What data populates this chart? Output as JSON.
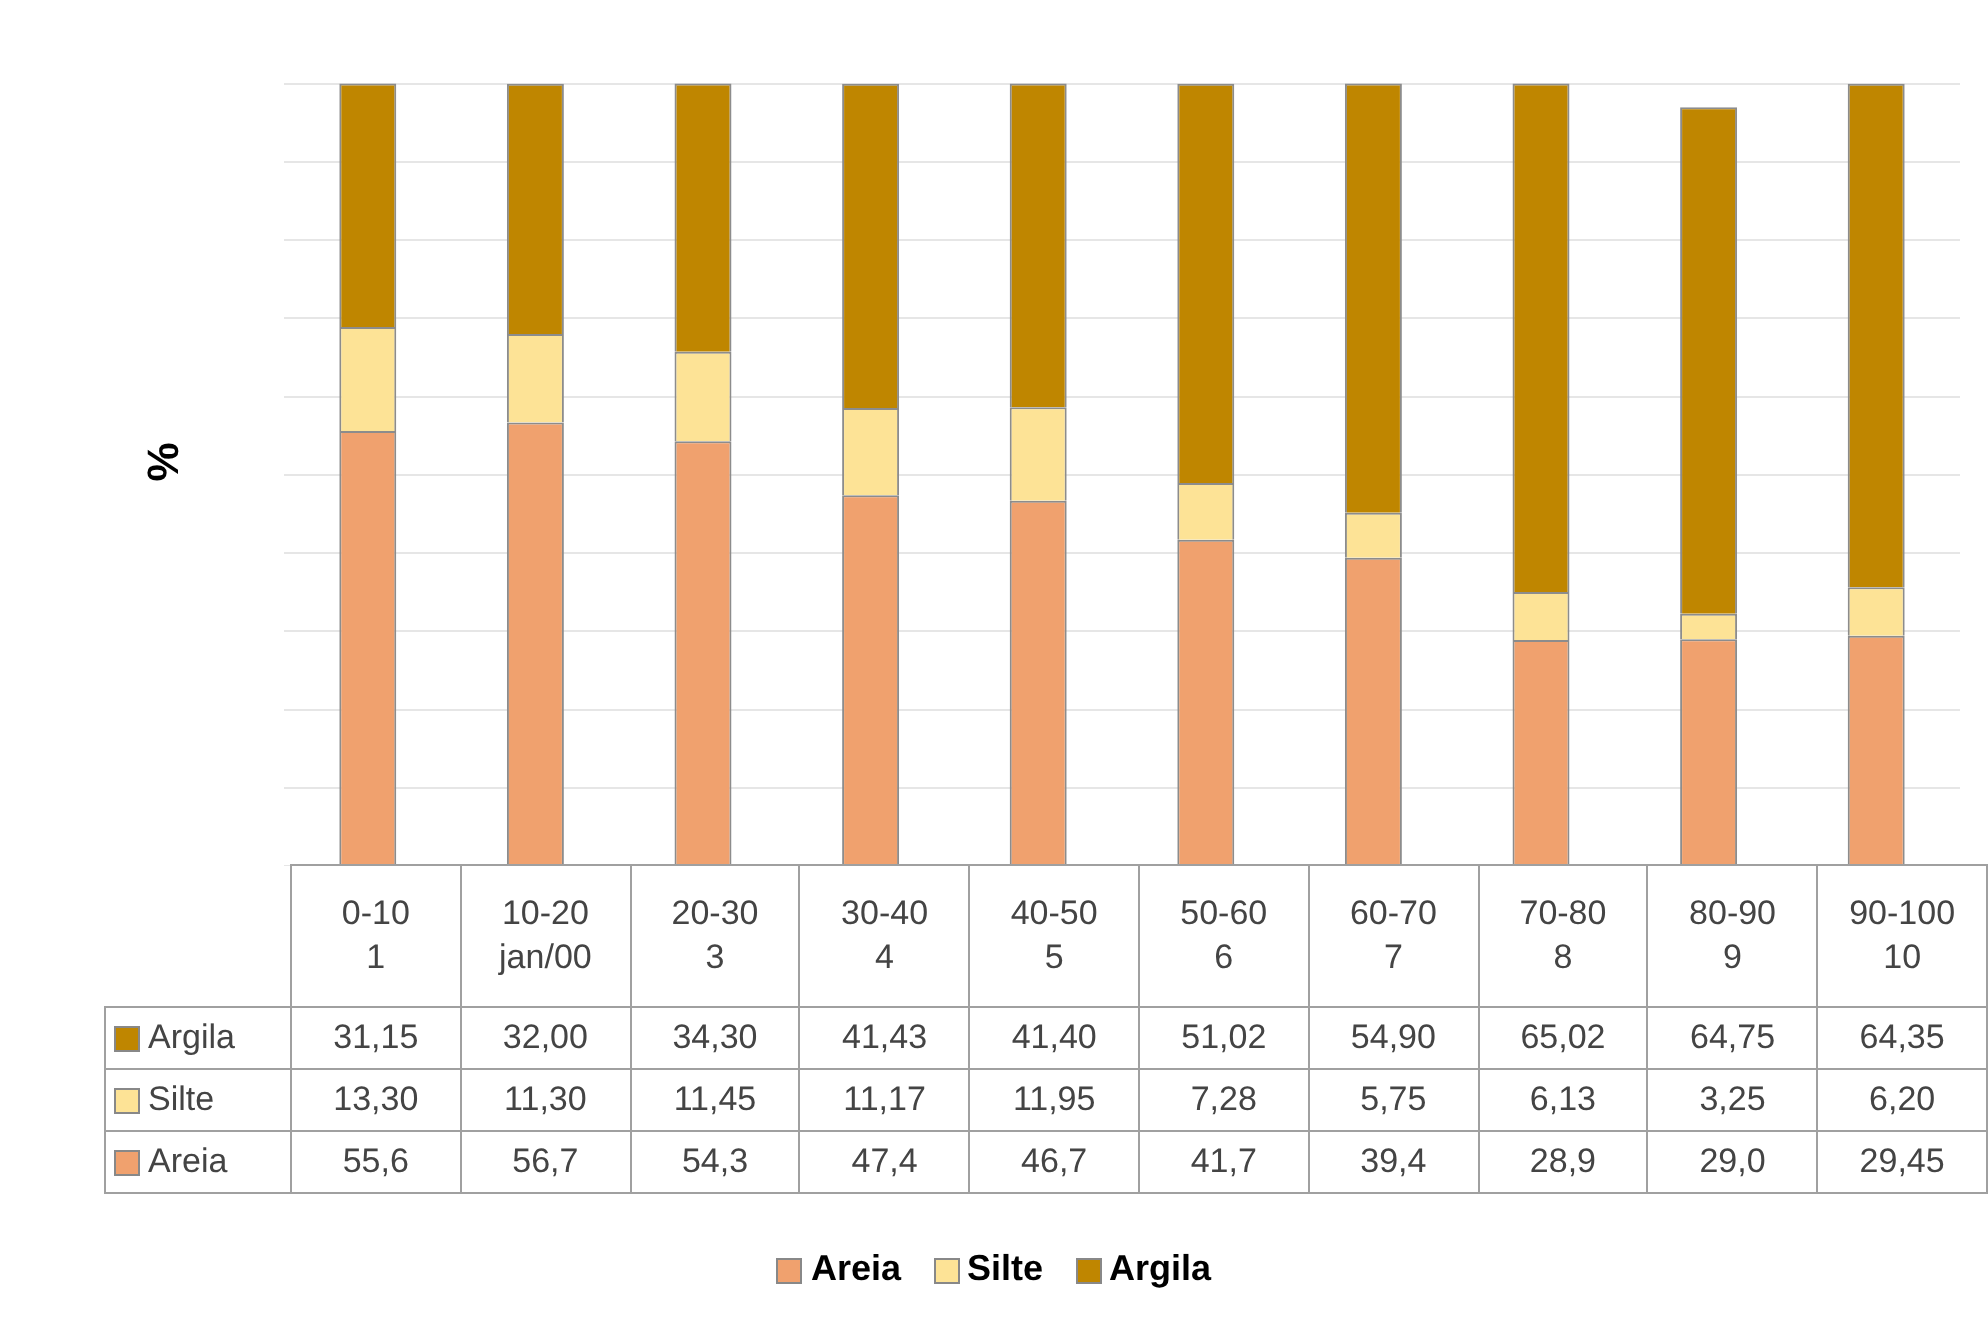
{
  "chart_data": {
    "type": "bar",
    "stacked": true,
    "ylabel": "%",
    "categories": [
      "0-10\n1",
      "10-20\njan/00",
      "20-30\n3",
      "30-40\n4",
      "40-50\n5",
      "50-60\n6",
      "60-70\n7",
      "70-80\n8",
      "80-90\n9",
      "90-100\n10"
    ],
    "series": [
      {
        "name": "Areia",
        "color": "#f0a16e",
        "values": [
          55.6,
          56.7,
          54.3,
          47.4,
          46.7,
          41.7,
          39.4,
          28.9,
          29.0,
          29.45
        ],
        "value_labels": [
          "55,6",
          "56,7",
          "54,3",
          "47,4",
          "46,7",
          "41,7",
          "39,4",
          "28,9",
          "29,0",
          "29,45"
        ]
      },
      {
        "name": "Silte",
        "color": "#fde396",
        "values": [
          13.3,
          11.3,
          11.45,
          11.17,
          11.95,
          7.28,
          5.75,
          6.13,
          3.25,
          6.2
        ],
        "value_labels": [
          "13,30",
          "11,30",
          "11,45",
          "11,17",
          "11,95",
          "7,28",
          "5,75",
          "6,13",
          "3,25",
          "6,20"
        ]
      },
      {
        "name": "Argila",
        "color": "#bf8600",
        "values": [
          31.15,
          32.0,
          34.3,
          41.43,
          41.4,
          51.02,
          54.9,
          65.02,
          64.75,
          64.35
        ],
        "value_labels": [
          "31,15",
          "32,00",
          "34,30",
          "41,43",
          "41,40",
          "51,02",
          "54,90",
          "65,02",
          "64,75",
          "64,35"
        ]
      }
    ],
    "ylim": [
      0,
      101
    ],
    "yticks": [
      {
        "value": 0,
        "label": null
      },
      {
        "value": 10,
        "label": null
      },
      {
        "value": 20,
        "label": null
      },
      {
        "value": 30,
        "label": null
      },
      {
        "value": 40,
        "label": null
      },
      {
        "value": 50,
        "label": null
      },
      {
        "value": 60,
        "label": null
      },
      {
        "value": 70,
        "label": null
      },
      {
        "value": 80,
        "label": null
      },
      {
        "value": 90,
        "label": null
      },
      {
        "value": 100,
        "label": null
      }
    ],
    "grid": "y",
    "legend": "bottom"
  }
}
